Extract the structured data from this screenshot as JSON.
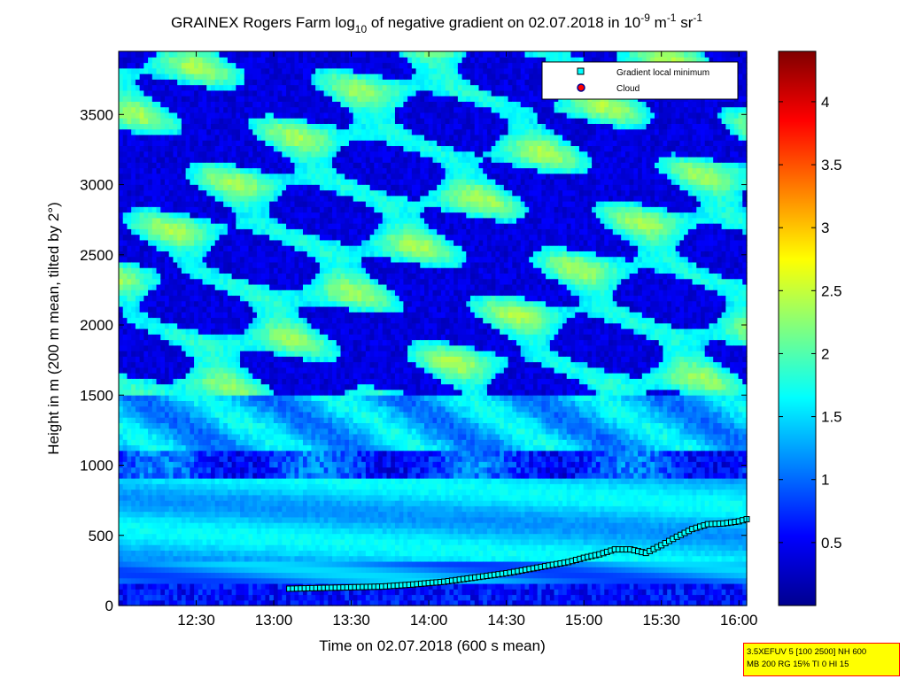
{
  "chart_data": {
    "type": "heatmap",
    "title": {
      "part1": "GRAINEX Rogers Farm log",
      "sub": "10",
      "part2": " of negative gradient on 02.07.2018 in 10",
      "sup1": "-9",
      "part3": " m",
      "sup2": "-1",
      "part4": " sr",
      "sup3": "-1"
    },
    "xlabel": "Time on 02.07.2018 (600 s mean)",
    "ylabel": "Height in m (200 m mean, tilted by 2°)",
    "x_range_hours": [
      12.0,
      16.05
    ],
    "y_range_m": [
      0,
      3950
    ],
    "x_ticks": [
      {
        "value": 12.5,
        "label": "12:30"
      },
      {
        "value": 13.0,
        "label": "13:00"
      },
      {
        "value": 13.5,
        "label": "13:30"
      },
      {
        "value": 14.0,
        "label": "14:00"
      },
      {
        "value": 14.5,
        "label": "14:30"
      },
      {
        "value": 15.0,
        "label": "15:00"
      },
      {
        "value": 15.5,
        "label": "15:30"
      },
      {
        "value": 16.0,
        "label": "16:00"
      }
    ],
    "y_ticks": [
      {
        "value": 0,
        "label": "0"
      },
      {
        "value": 500,
        "label": "500"
      },
      {
        "value": 1000,
        "label": "1000"
      },
      {
        "value": 1500,
        "label": "1500"
      },
      {
        "value": 2000,
        "label": "2000"
      },
      {
        "value": 2500,
        "label": "2500"
      },
      {
        "value": 3000,
        "label": "3000"
      },
      {
        "value": 3500,
        "label": "3500"
      }
    ],
    "colorbar": {
      "range": [
        0,
        4.4
      ],
      "colormap": "jet",
      "ticks": [
        {
          "value": 0.5,
          "label": "0.5"
        },
        {
          "value": 1,
          "label": "1"
        },
        {
          "value": 1.5,
          "label": "1.5"
        },
        {
          "value": 2,
          "label": "2"
        },
        {
          "value": 2.5,
          "label": "2.5"
        },
        {
          "value": 3,
          "label": "3"
        },
        {
          "value": 3.5,
          "label": "3.5"
        },
        {
          "value": 4,
          "label": "4"
        }
      ]
    },
    "legend": {
      "placement": "top-right",
      "entries": [
        {
          "label": "Gradient local minimum",
          "color": "#00ffff"
        },
        {
          "label": "Cloud",
          "color": "#ff0000"
        }
      ]
    },
    "series": [
      {
        "marker": "square",
        "color": "#00ffff",
        "x": [
          13.1,
          13.3,
          13.5,
          13.7,
          13.9,
          14.1,
          14.3,
          14.5,
          14.7,
          14.9,
          15.0,
          15.1,
          15.2,
          15.3,
          15.4,
          15.5,
          15.6,
          15.7,
          15.8,
          15.9,
          16.0,
          16.05
        ],
        "y": [
          120,
          125,
          130,
          135,
          150,
          170,
          200,
          230,
          270,
          310,
          340,
          365,
          400,
          400,
          375,
          430,
          490,
          545,
          580,
          585,
          600,
          615
        ]
      }
    ]
  },
  "stamp": {
    "line1": "3.5XEFUV 5 [100 2500] NH 600",
    "line2": "MB 200 RG 15% TI 0 HI 15"
  },
  "colors": {
    "background": "#ffffff",
    "marker_fill": "#00ffff",
    "cloud_marker": "#ff0000",
    "stamp_background": "#ffff00",
    "stamp_border": "#ff0000"
  }
}
